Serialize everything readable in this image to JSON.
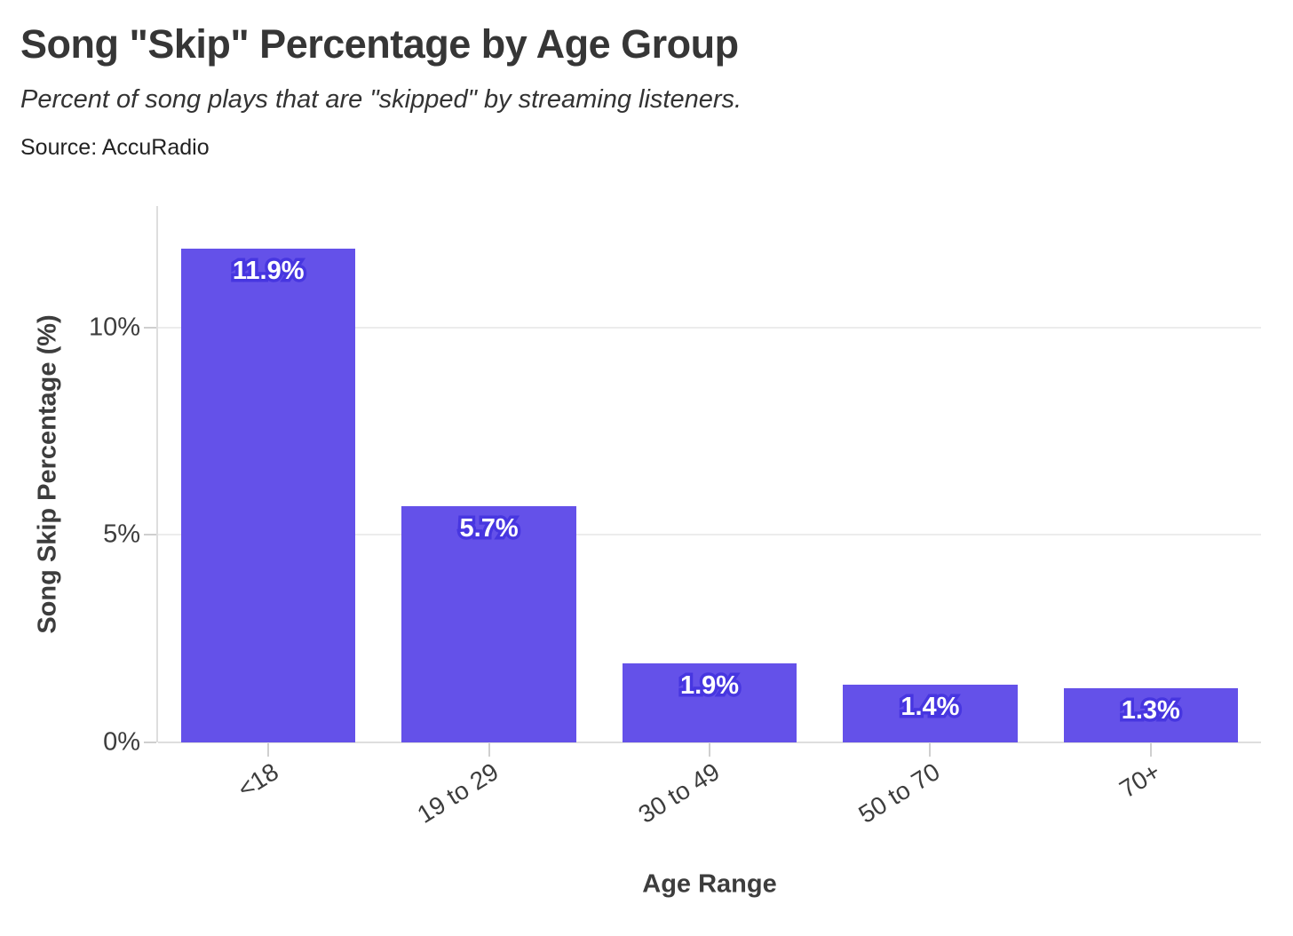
{
  "header": {
    "title": "Song \"Skip\" Percentage by Age Group",
    "subtitle": "Percent of song plays that are \"skipped\" by streaming listeners.",
    "source": "Source: AccuRadio"
  },
  "chart_data": {
    "type": "bar",
    "title": "Song \"Skip\" Percentage by Age Group",
    "subtitle": "Percent of song plays that are \"skipped\" by streaming listeners.",
    "source": "Source: AccuRadio",
    "categories": [
      "<18",
      "19 to 29",
      "30 to 49",
      "50 to 70",
      "70+"
    ],
    "values": [
      11.9,
      5.7,
      1.9,
      1.4,
      1.3
    ],
    "value_labels": [
      "11.9%",
      "5.7%",
      "1.9%",
      "1.4%",
      "1.3%"
    ],
    "xlabel": "Age Range",
    "ylabel": "Song Skip Percentage (%)",
    "ylim": [
      0,
      12.93
    ],
    "yticks": [
      0,
      5,
      10
    ],
    "ytick_labels": [
      "0%",
      "5%",
      "10%"
    ],
    "grid": true,
    "legend": "none",
    "colors": {
      "bar_fill": "#6451e9",
      "value_label_fill": "#ffffff",
      "value_label_outline": "#4736e0",
      "grid_line": "#ececec",
      "axis_line": "#dedede",
      "tick_mark": "#cfcfcf",
      "tick_text": "#3d3d3d",
      "title_text": "#363636"
    }
  }
}
